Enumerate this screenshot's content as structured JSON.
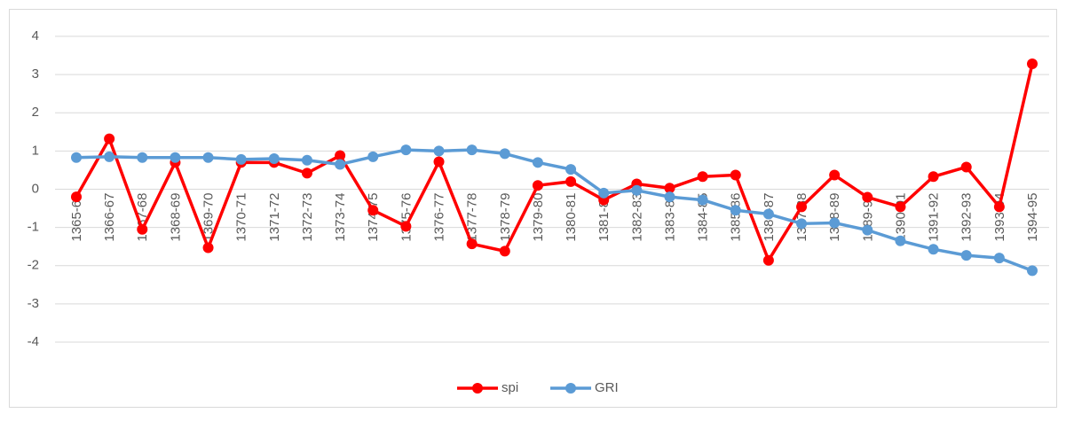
{
  "chart_data": {
    "type": "line",
    "categories": [
      "1365-66",
      "1366-67",
      "1367-68",
      "1368-69",
      "1369-70",
      "1370-71",
      "1371-72",
      "1372-73",
      "1373-74",
      "1374-75",
      "1375-76",
      "1376-77",
      "1377-78",
      "1378-79",
      "1379-80",
      "1380-81",
      "1381-82",
      "1382-83",
      "1383-84",
      "1384-85",
      "1385-86",
      "1386-87",
      "1387-88",
      "1388-89",
      "1389-90",
      "1390-91",
      "1391-92",
      "1392-93",
      "1393-94",
      "1394-95"
    ],
    "series": [
      {
        "name": "spi",
        "color": "#ff0000",
        "values": [
          -0.2,
          1.32,
          -1.05,
          0.7,
          -1.53,
          0.7,
          0.7,
          0.42,
          0.88,
          -0.55,
          -0.97,
          0.72,
          -1.43,
          -1.62,
          0.1,
          0.2,
          -0.28,
          0.14,
          0.03,
          0.33,
          0.37,
          -1.86,
          -0.46,
          0.37,
          -0.21,
          -0.46,
          0.33,
          0.58,
          -0.46,
          3.28
        ]
      },
      {
        "name": "GRI",
        "color": "#5b9bd5",
        "values": [
          0.83,
          0.85,
          0.83,
          0.83,
          0.83,
          0.78,
          0.8,
          0.76,
          0.65,
          0.85,
          1.03,
          1.0,
          1.03,
          0.93,
          0.7,
          0.52,
          -0.1,
          -0.03,
          -0.2,
          -0.28,
          -0.55,
          -0.65,
          -0.9,
          -0.88,
          -1.07,
          -1.35,
          -1.57,
          -1.73,
          -1.8,
          -2.13
        ]
      }
    ],
    "ylim": [
      -4,
      4
    ],
    "yticks": [
      -4,
      -3,
      -2,
      -1,
      0,
      1,
      2,
      3,
      4
    ],
    "grid": true,
    "legend": "bottom"
  }
}
